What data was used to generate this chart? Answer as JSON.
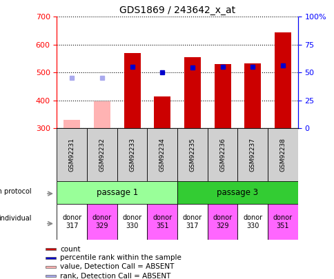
{
  "title": "GDS1869 / 243642_x_at",
  "samples": [
    "GSM92231",
    "GSM92232",
    "GSM92233",
    "GSM92234",
    "GSM92235",
    "GSM92236",
    "GSM92237",
    "GSM92238"
  ],
  "count_values": [
    null,
    null,
    570,
    415,
    555,
    530,
    532,
    645
  ],
  "count_absent": [
    330,
    397,
    null,
    null,
    null,
    null,
    null,
    null
  ],
  "percentile_rank": [
    null,
    null,
    520,
    500,
    518,
    520,
    520,
    525
  ],
  "rank_absent": [
    482,
    482,
    null,
    null,
    null,
    null,
    null,
    null
  ],
  "ymin": 300,
  "ymax": 700,
  "y_ticks": [
    300,
    400,
    500,
    600,
    700
  ],
  "y2_labels": [
    "0",
    "25",
    "50",
    "75",
    "100%"
  ],
  "bar_color_present": "#cc0000",
  "bar_color_absent": "#ffb3b3",
  "dot_color_present": "#0000cc",
  "dot_color_absent": "#aaaaee",
  "passage1_color": "#99ff99",
  "passage3_color": "#33cc33",
  "donor_colors": [
    "#ffffff",
    "#ff66ff",
    "#ffffff",
    "#ff66ff",
    "#ffffff",
    "#ff66ff",
    "#ffffff",
    "#ff66ff"
  ],
  "donor_labels": [
    "donor\n317",
    "donor\n329",
    "donor\n330",
    "donor\n351",
    "donor\n317",
    "donor\n329",
    "donor\n330",
    "donor\n351"
  ],
  "growth_protocol_label": "growth protocol",
  "individual_label": "individual",
  "legend_items": [
    {
      "color": "#cc0000",
      "label": "count"
    },
    {
      "color": "#0000cc",
      "label": "percentile rank within the sample"
    },
    {
      "color": "#ffb3b3",
      "label": "value, Detection Call = ABSENT"
    },
    {
      "color": "#aaaaee",
      "label": "rank, Detection Call = ABSENT"
    }
  ],
  "baseline": 300,
  "fig_width": 4.85,
  "fig_height": 4.05,
  "dpi": 100
}
